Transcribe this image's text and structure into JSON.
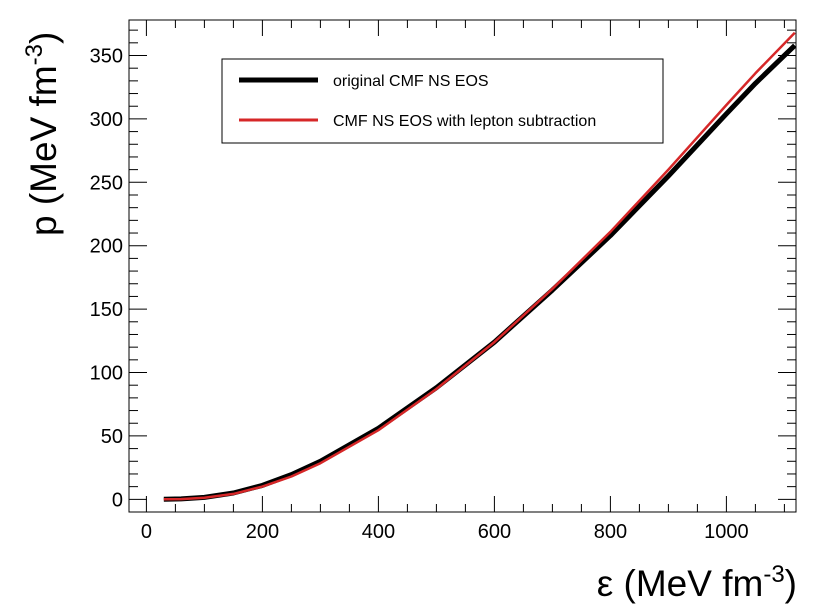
{
  "chart_data": {
    "type": "line",
    "title": "",
    "xlabel": {
      "base": "ε (MeV fm",
      "sup": "-3",
      "close": ")"
    },
    "ylabel": {
      "base": "p (MeV fm",
      "sup": "-3",
      "close": ")"
    },
    "xlim": [
      -30,
      1120
    ],
    "ylim": [
      -10,
      378
    ],
    "x_ticks": [
      0,
      200,
      400,
      600,
      800,
      1000
    ],
    "x_tick_labels": [
      "0",
      "200",
      "400",
      "600",
      "800",
      "1000"
    ],
    "y_ticks": [
      0,
      50,
      100,
      150,
      200,
      250,
      300,
      350
    ],
    "y_tick_labels": [
      "0",
      "50",
      "100",
      "150",
      "200",
      "250",
      "300",
      "350"
    ],
    "x_minor_step": 50,
    "y_minor_step": 10,
    "grid": false,
    "legend_position": "top-right",
    "series": [
      {
        "name": "original CMF NS EOS",
        "color": "#000000",
        "x": [
          30,
          60,
          100,
          150,
          200,
          250,
          300,
          400,
          500,
          600,
          700,
          800,
          900,
          1000,
          1050,
          1118
        ],
        "y": [
          0,
          0.3,
          1.5,
          5,
          11,
          19.5,
          30,
          56,
          88,
          124,
          165,
          208,
          255,
          304,
          328,
          358
        ]
      },
      {
        "name": "CMF NS EOS with lepton subtraction",
        "color": "#d62728",
        "x": [
          30,
          60,
          100,
          150,
          200,
          250,
          300,
          400,
          500,
          600,
          700,
          800,
          900,
          1000,
          1050,
          1118
        ],
        "y": [
          0,
          0.2,
          1.2,
          4.3,
          10,
          18,
          28.5,
          54.5,
          87,
          124,
          166,
          211,
          260,
          311,
          336,
          368
        ]
      }
    ]
  }
}
